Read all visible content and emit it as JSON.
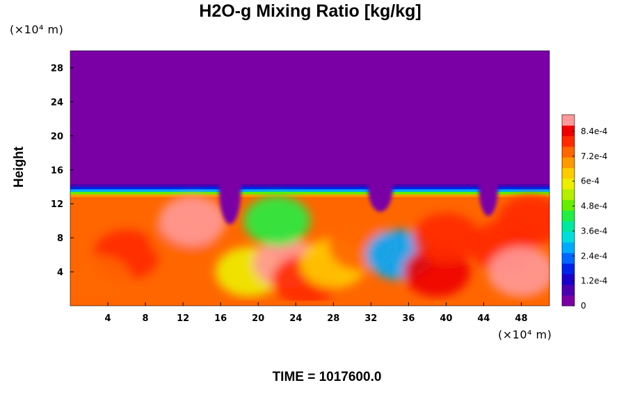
{
  "title": "H2O-g Mixing Ratio [kg/kg]",
  "y_unit": "(×10⁴ m)",
  "x_unit": "(×10⁴ m)",
  "ylabel": "Height",
  "footer": "TIME = 1017600.0",
  "chart_data": {
    "type": "heatmap",
    "title": "H2O-g Mixing Ratio [kg/kg]",
    "ylabel": "Height",
    "xlabel": "",
    "xlim": [
      0,
      51
    ],
    "ylim": [
      0,
      30
    ],
    "x_ticks": [
      4,
      8,
      12,
      16,
      20,
      24,
      28,
      32,
      36,
      40,
      44,
      48
    ],
    "y_ticks": [
      4,
      8,
      12,
      16,
      20,
      24,
      28
    ],
    "colorbar": {
      "min": 0,
      "max": 0.00092,
      "tick_values": [
        0,
        0.00012,
        0.00024,
        0.00036,
        0.00048,
        0.0006,
        0.00072,
        0.00084
      ],
      "tick_labels": [
        "0",
        "1.2e-4",
        "2.4e-4",
        "3.6e-4",
        "4.8e-4",
        "6e-4",
        "7.2e-4",
        "8.4e-4"
      ],
      "colors": [
        "#7a00a6",
        "#4b00b0",
        "#1a00c8",
        "#0022e6",
        "#0066ff",
        "#00aaff",
        "#00dddd",
        "#00e8a0",
        "#22ee44",
        "#66ee00",
        "#b4ee00",
        "#eeee00",
        "#ffcc00",
        "#ff9900",
        "#ff6600",
        "#ff2a00",
        "#ee0000",
        "#ff9999"
      ]
    },
    "moist_layer_top": 13.5,
    "regions": [
      {
        "x": 6,
        "y": 6,
        "value": 0.0008
      },
      {
        "x": 3,
        "y": 3,
        "value": 0.00075
      },
      {
        "x": 12,
        "y": 8,
        "value": 0.00072
      },
      {
        "x": 13,
        "y": 10,
        "value": 0.0009
      },
      {
        "x": 19,
        "y": 4,
        "value": 0.0006
      },
      {
        "x": 23,
        "y": 5,
        "value": 0.0009
      },
      {
        "x": 25,
        "y": 3,
        "value": 0.0008
      },
      {
        "x": 28,
        "y": 5,
        "value": 0.00062
      },
      {
        "x": 31,
        "y": 7,
        "value": 0.00072
      },
      {
        "x": 22,
        "y": 10,
        "value": 0.00045
      },
      {
        "x": 35,
        "y": 6,
        "value": 0.0003
      },
      {
        "x": 39,
        "y": 4,
        "value": 0.00085
      },
      {
        "x": 40,
        "y": 8,
        "value": 0.0008
      },
      {
        "x": 46,
        "y": 7,
        "value": 0.0008
      },
      {
        "x": 48,
        "y": 4,
        "value": 0.0009
      },
      {
        "x": 49,
        "y": 10,
        "value": 0.00078
      }
    ]
  }
}
